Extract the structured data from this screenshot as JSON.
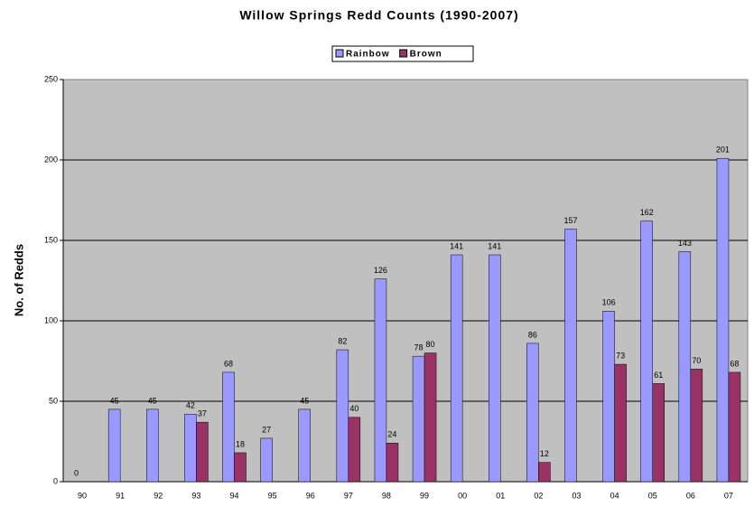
{
  "chart_data": {
    "type": "bar",
    "title": "Willow Springs Redd Counts (1990-2007)",
    "y_label": "No. of Redds",
    "categories": [
      "90",
      "91",
      "92",
      "93",
      "94",
      "95",
      "96",
      "97",
      "98",
      "99",
      "00",
      "01",
      "02",
      "03",
      "04",
      "05",
      "06",
      "07"
    ],
    "series": [
      {
        "name": "Rainbow",
        "color": "#9999ff",
        "values": [
          0,
          45,
          45,
          42,
          68,
          27,
          45,
          82,
          126,
          78,
          141,
          141,
          86,
          157,
          106,
          162,
          143,
          201
        ]
      },
      {
        "name": "Brown",
        "color": "#993366",
        "values": [
          null,
          null,
          null,
          37,
          18,
          null,
          null,
          40,
          24,
          80,
          null,
          null,
          12,
          null,
          73,
          61,
          70,
          68
        ]
      }
    ],
    "ylim": [
      0,
      250
    ],
    "yticks": [
      0,
      50,
      100,
      150,
      200,
      250
    ],
    "grid": true,
    "legend": "top"
  }
}
